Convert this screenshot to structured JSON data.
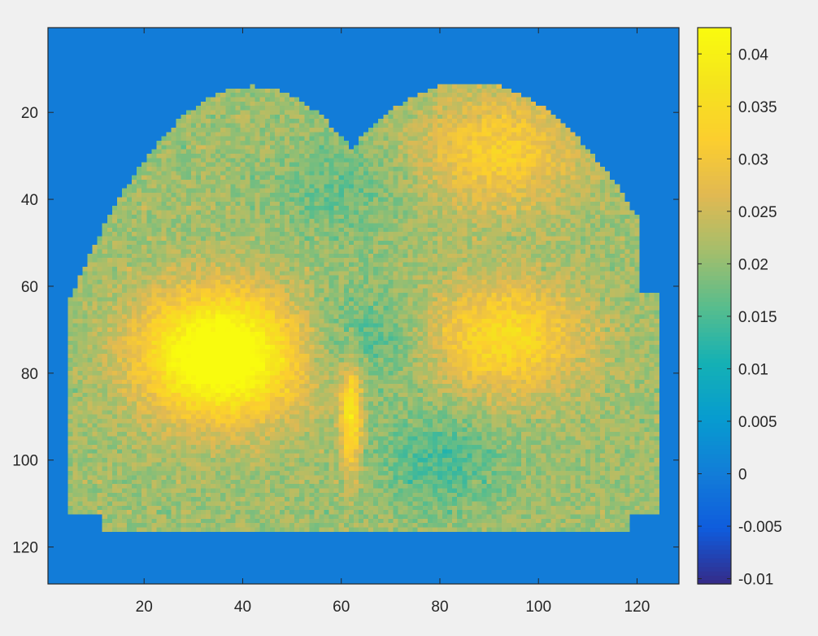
{
  "chart_data": {
    "type": "heatmap",
    "title": "",
    "xlabel": "",
    "ylabel": "",
    "xlim": [
      0.5,
      128.5
    ],
    "ylim": [
      0.5,
      128.5
    ],
    "y_reversed": true,
    "x_ticks": [
      20,
      40,
      60,
      80,
      100,
      120
    ],
    "y_ticks": [
      20,
      40,
      60,
      80,
      100,
      120
    ],
    "colormap": "parula",
    "colorbar": {
      "location": "right",
      "clim": [
        -0.0105,
        0.0425
      ],
      "ticks": [
        -0.01,
        -0.005,
        0,
        0.005,
        0.01,
        0.015,
        0.02,
        0.025,
        0.03,
        0.035,
        0.04
      ],
      "tick_labels": [
        "-0.01",
        "-0.005",
        "0",
        "0.005",
        "0.01",
        "0.015",
        "0.02",
        "0.025",
        "0.03",
        "0.035",
        "0.04"
      ]
    },
    "background_value": 0,
    "region": {
      "description_values": "approximate value field inside the bilobed mask, in data units",
      "mask_rows": [
        14,
        116
      ],
      "mask_cols": [
        5,
        124
      ],
      "typical_value": 0.021,
      "hotspots": [
        {
          "x": 35,
          "y": 72,
          "value": 0.037
        },
        {
          "x": 36,
          "y": 80,
          "value": 0.036
        },
        {
          "x": 93,
          "y": 72,
          "value": 0.035
        },
        {
          "x": 92,
          "y": 29,
          "value": 0.032
        },
        {
          "x": 62,
          "y": 90,
          "value": 0.038
        }
      ],
      "cool_zones": [
        {
          "x": 65,
          "y": 72,
          "value": 0.015
        },
        {
          "x": 80,
          "y": 100,
          "value": 0.015
        },
        {
          "x": 60,
          "y": 38,
          "value": 0.017
        }
      ]
    }
  },
  "colors": {
    "background": "#f0f0f0",
    "axes_border": "#262626",
    "zero_value": "#3e5ef2"
  }
}
